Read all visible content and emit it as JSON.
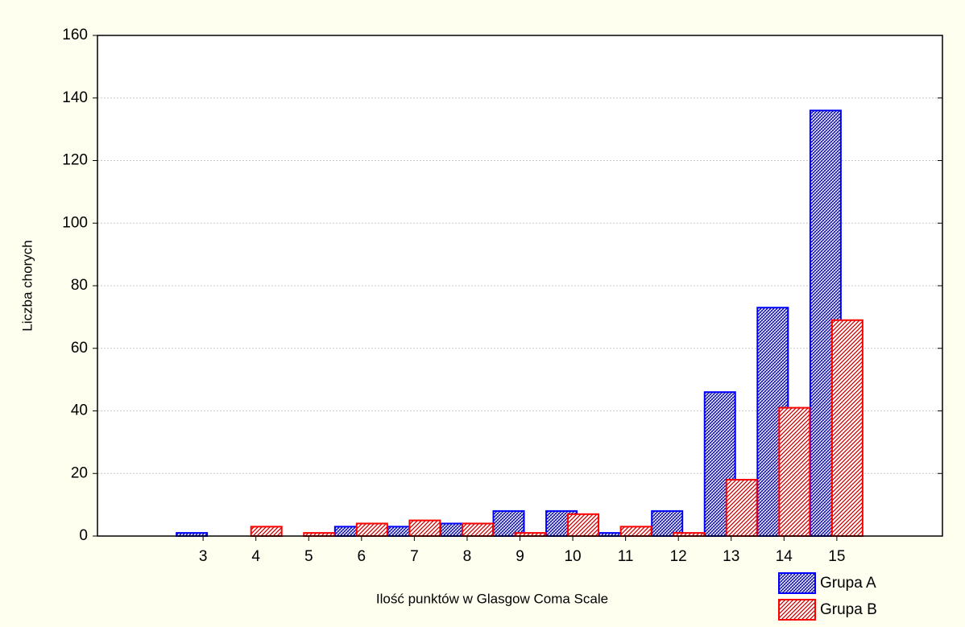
{
  "chart_data": {
    "type": "bar",
    "y_label": "Liczba chorych",
    "x_label": "Ilość punktów w Glasgow Coma Scale",
    "categories": [
      "3",
      "4",
      "5",
      "6",
      "7",
      "8",
      "9",
      "10",
      "11",
      "12",
      "13",
      "14",
      "15"
    ],
    "series": [
      {
        "name": "Grupa A",
        "color": "#0000ff",
        "values": [
          1,
          0,
          0,
          3,
          3,
          4,
          8,
          8,
          1,
          8,
          46,
          73,
          136
        ]
      },
      {
        "name": "Grupa B",
        "color": "#ff0000",
        "values": [
          0,
          3,
          1,
          4,
          5,
          4,
          1,
          7,
          3,
          1,
          18,
          41,
          69
        ]
      }
    ],
    "ylim": [
      0,
      160
    ],
    "yticks": [
      0,
      20,
      40,
      60,
      80,
      100,
      120,
      140,
      160
    ],
    "grid": true,
    "legend": "bottom-right"
  }
}
